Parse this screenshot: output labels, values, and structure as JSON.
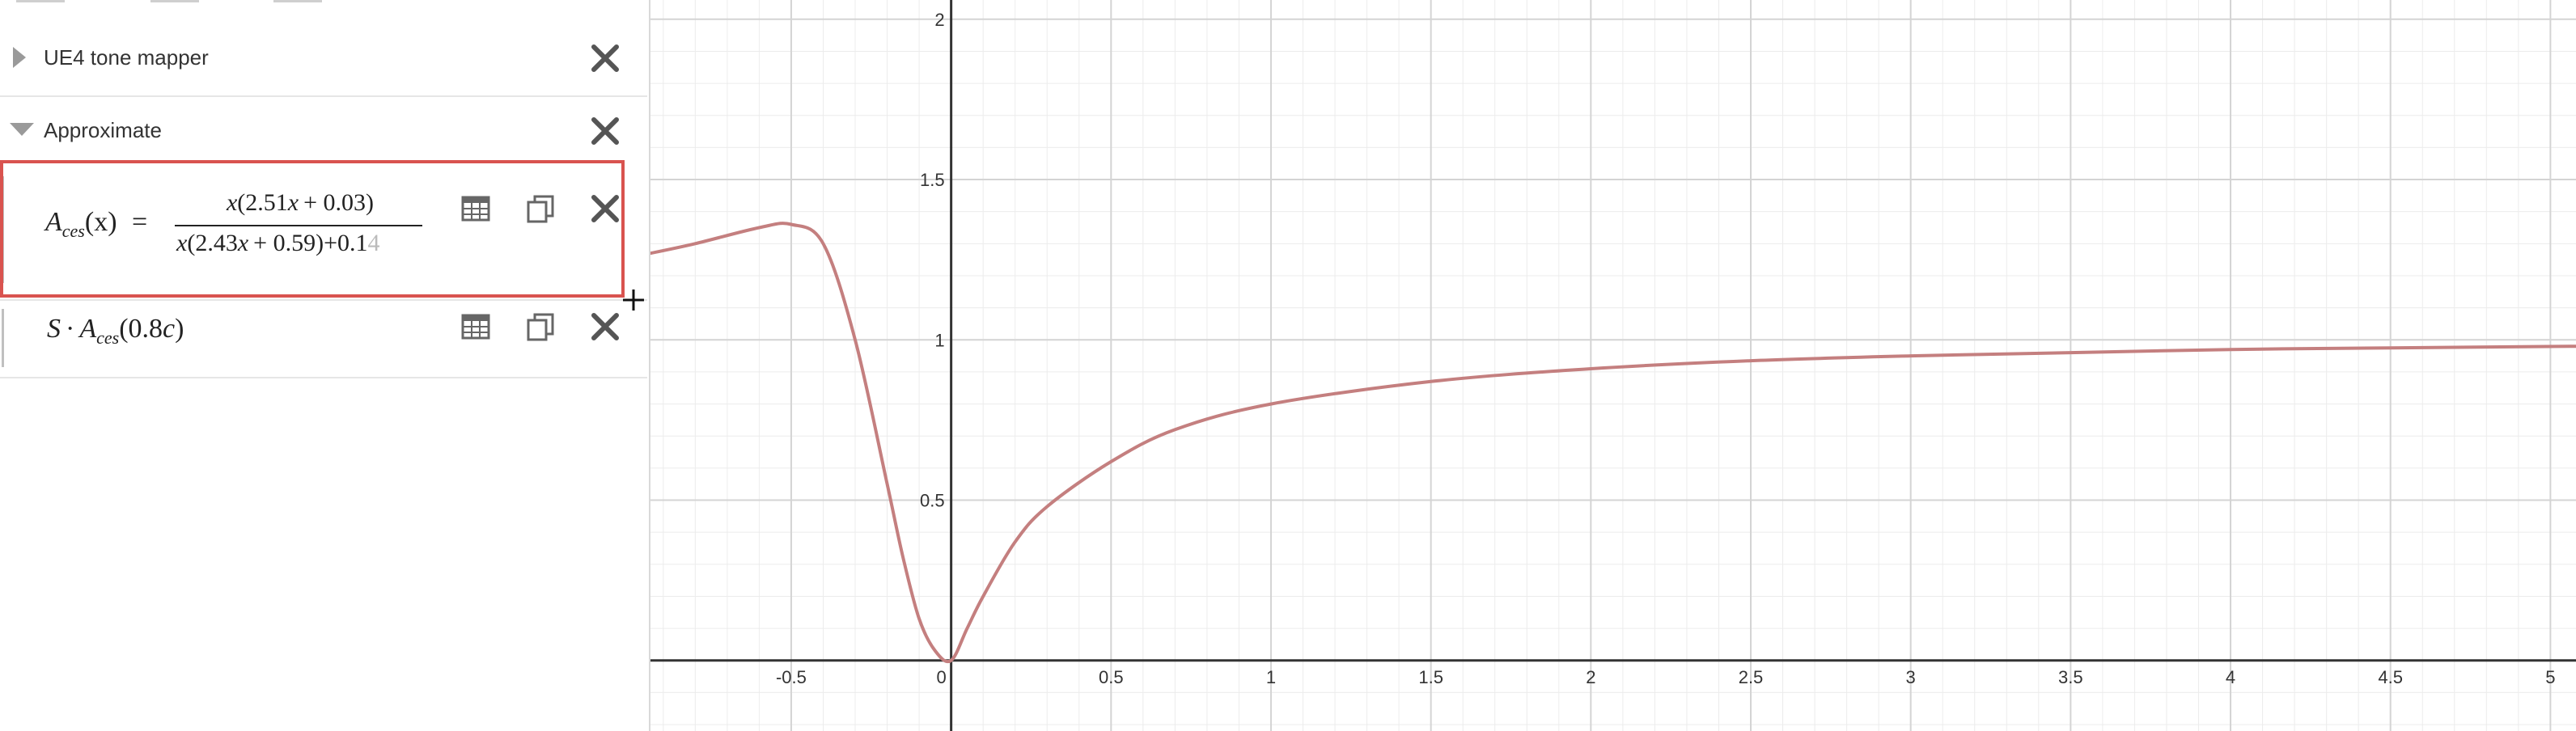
{
  "sidebar": {
    "folders": [
      {
        "label": "UE4 tone mapper",
        "collapsed": true
      },
      {
        "label": "Approximate",
        "collapsed": false
      }
    ],
    "expr1": {
      "lhs_fn": "A",
      "lhs_sub": "ces",
      "lhs_arg": "(x)",
      "equals": "=",
      "num_var": "x",
      "num_paren": "(2.51",
      "num_x": "x",
      "num_rest": "+ 0.03)",
      "den_var": "x",
      "den_paren": "(2.43",
      "den_x": "x",
      "den_rest": "+ 0.59)",
      "den_add": "+0.1",
      "den_faded": "4"
    },
    "expr2": {
      "S": "S",
      "dot": "·",
      "fn": "A",
      "sub": "ces",
      "arg_open": "(0.8",
      "arg_c": "c",
      "arg_close": ")"
    }
  },
  "graph": {
    "x_ticks": [
      "-0.5",
      "0",
      "0.5",
      "1",
      "1.5",
      "2",
      "2.5",
      "3",
      "3.5",
      "4",
      "4.5",
      "5"
    ],
    "y_ticks": [
      "0.5",
      "1",
      "1.5",
      "2"
    ],
    "curve_color": "#c47f7f",
    "grid_major_color": "#d4d4d4",
    "grid_minor_color": "#ececec",
    "axis_color": "#333333"
  },
  "chart_data": {
    "type": "line",
    "xlim": [
      -0.94,
      5.08
    ],
    "ylim": [
      -0.22,
      2.06
    ],
    "series": [
      {
        "x": [
          -0.94,
          -0.8,
          -0.6,
          -0.5,
          -0.4,
          -0.3,
          -0.2,
          -0.15,
          -0.1,
          -0.05,
          0.0,
          0.05,
          0.1,
          0.2,
          0.3,
          0.5,
          0.7,
          1.0,
          1.5,
          2.0,
          2.5,
          3.0,
          3.5,
          4.0,
          4.5,
          5.08
        ],
        "y": [
          1.27,
          1.3,
          1.35,
          1.36,
          1.3,
          1.0,
          0.55,
          0.32,
          0.13,
          0.03,
          0.0,
          0.1,
          0.2,
          0.37,
          0.48,
          0.62,
          0.72,
          0.8,
          0.87,
          0.91,
          0.935,
          0.95,
          0.96,
          0.97,
          0.975,
          0.98
        ]
      }
    ]
  }
}
